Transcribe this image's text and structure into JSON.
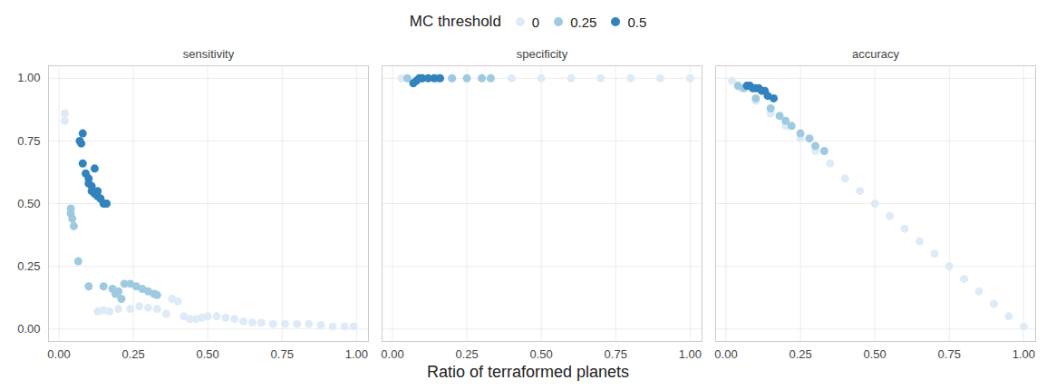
{
  "chart_data": {
    "type": "scatter",
    "legend_title": "MC threshold",
    "legend": "top",
    "grid": true,
    "x_label": "Ratio of terraformed planets",
    "xlim": [
      -0.035,
      1.04
    ],
    "ylim": [
      -0.05,
      1.05
    ],
    "xticks": [
      {
        "value": 0,
        "label": "0.00"
      },
      {
        "value": 0.25,
        "label": "0.25"
      },
      {
        "value": 0.5,
        "label": "0.50"
      },
      {
        "value": 0.75,
        "label": "0.75"
      },
      {
        "value": 1,
        "label": "1.00"
      }
    ],
    "yticks": [
      {
        "value": 0,
        "label": "0.00"
      },
      {
        "value": 0.25,
        "label": "0.25"
      },
      {
        "value": 0.5,
        "label": "0.50"
      },
      {
        "value": 0.75,
        "label": "0.75"
      },
      {
        "value": 1,
        "label": "1.00"
      }
    ],
    "panels": [
      {
        "title": "sensitivity",
        "series": [
          {
            "name": "0",
            "color": "#deebf7",
            "x": [
              0.02,
              0.02,
              0.13,
              0.15,
              0.17,
              0.2,
              0.24,
              0.27,
              0.3,
              0.33,
              0.36,
              0.38,
              0.4,
              0.42,
              0.44,
              0.46,
              0.48,
              0.5,
              0.53,
              0.56,
              0.59,
              0.62,
              0.65,
              0.68,
              0.72,
              0.76,
              0.8,
              0.84,
              0.88,
              0.92,
              0.96,
              0.99
            ],
            "y": [
              0.86,
              0.83,
              0.07,
              0.075,
              0.07,
              0.08,
              0.08,
              0.09,
              0.085,
              0.08,
              0.06,
              0.12,
              0.11,
              0.05,
              0.04,
              0.04,
              0.045,
              0.05,
              0.05,
              0.045,
              0.04,
              0.03,
              0.025,
              0.025,
              0.02,
              0.02,
              0.02,
              0.02,
              0.015,
              0.01,
              0.01,
              0.01
            ]
          },
          {
            "name": "0.25",
            "color": "#9ecae1",
            "x": [
              0.04,
              0.04,
              0.045,
              0.05,
              0.065,
              0.1,
              0.15,
              0.18,
              0.19,
              0.2,
              0.21,
              0.22,
              0.24,
              0.26,
              0.28,
              0.3,
              0.32,
              0.33
            ],
            "y": [
              0.48,
              0.46,
              0.44,
              0.41,
              0.27,
              0.17,
              0.17,
              0.16,
              0.14,
              0.15,
              0.12,
              0.18,
              0.18,
              0.17,
              0.16,
              0.15,
              0.14,
              0.135
            ]
          },
          {
            "name": "0.5",
            "color": "#3182bd",
            "x": [
              0.08,
              0.07,
              0.075,
              0.08,
              0.09,
              0.1,
              0.1,
              0.11,
              0.12,
              0.11,
              0.12,
              0.13,
              0.13,
              0.14,
              0.15,
              0.16
            ],
            "y": [
              0.78,
              0.75,
              0.74,
              0.66,
              0.62,
              0.6,
              0.58,
              0.57,
              0.64,
              0.55,
              0.54,
              0.53,
              0.55,
              0.52,
              0.5,
              0.5
            ]
          }
        ]
      },
      {
        "title": "specificity",
        "series": [
          {
            "name": "0",
            "color": "#deebf7",
            "x": [
              0.03,
              0.1,
              0.2,
              0.3,
              0.4,
              0.5,
              0.6,
              0.7,
              0.8,
              0.9,
              1.0
            ],
            "y": [
              1,
              1,
              1,
              1,
              1,
              1,
              1,
              1,
              1,
              1,
              1
            ]
          },
          {
            "name": "0.25",
            "color": "#9ecae1",
            "x": [
              0.05,
              0.1,
              0.15,
              0.2,
              0.25,
              0.3,
              0.33
            ],
            "y": [
              1,
              1,
              1,
              1,
              1,
              1,
              1
            ]
          },
          {
            "name": "0.5",
            "color": "#3182bd",
            "x": [
              0.07,
              0.08,
              0.09,
              0.1,
              0.12,
              0.14,
              0.16
            ],
            "y": [
              0.98,
              0.99,
              1,
              1,
              1,
              1,
              1
            ]
          }
        ]
      },
      {
        "title": "accuracy",
        "series": [
          {
            "name": "0",
            "color": "#deebf7",
            "x": [
              0.02,
              0.05,
              0.1,
              0.15,
              0.2,
              0.25,
              0.3,
              0.35,
              0.4,
              0.45,
              0.5,
              0.55,
              0.6,
              0.65,
              0.7,
              0.75,
              0.8,
              0.85,
              0.9,
              0.95,
              1.0
            ],
            "y": [
              0.99,
              0.96,
              0.91,
              0.86,
              0.81,
              0.76,
              0.71,
              0.66,
              0.6,
              0.55,
              0.5,
              0.45,
              0.4,
              0.35,
              0.3,
              0.25,
              0.2,
              0.15,
              0.1,
              0.05,
              0.01
            ]
          },
          {
            "name": "0.25",
            "color": "#9ecae1",
            "x": [
              0.04,
              0.06,
              0.1,
              0.15,
              0.18,
              0.2,
              0.22,
              0.25,
              0.28,
              0.3,
              0.33
            ],
            "y": [
              0.97,
              0.96,
              0.92,
              0.88,
              0.85,
              0.83,
              0.81,
              0.78,
              0.76,
              0.73,
              0.71
            ]
          },
          {
            "name": "0.5",
            "color": "#3182bd",
            "x": [
              0.07,
              0.08,
              0.09,
              0.1,
              0.11,
              0.12,
              0.13,
              0.14,
              0.16
            ],
            "y": [
              0.97,
              0.97,
              0.96,
              0.96,
              0.96,
              0.95,
              0.95,
              0.93,
              0.92
            ]
          }
        ]
      }
    ]
  }
}
